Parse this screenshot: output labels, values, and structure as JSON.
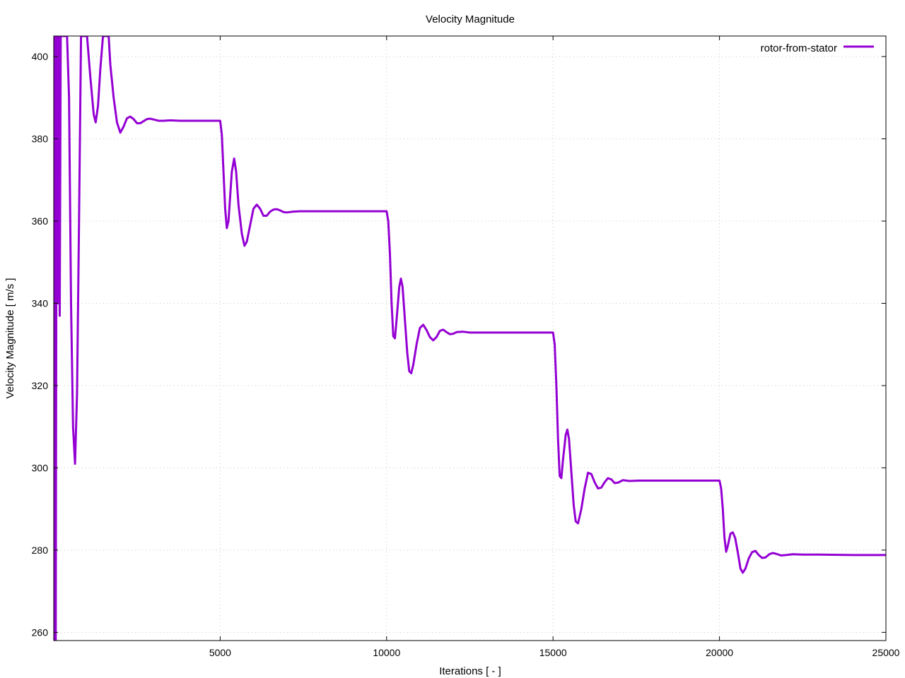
{
  "chart_data": {
    "type": "line",
    "title": "Velocity Magnitude",
    "xlabel": "Iterations [ - ]",
    "ylabel": "Velocity Magnitude [ m/s ]",
    "xlim": [
      0,
      25000
    ],
    "ylim": [
      258,
      405
    ],
    "x_ticks": [
      5000,
      10000,
      15000,
      20000,
      25000
    ],
    "y_ticks": [
      260,
      280,
      300,
      320,
      340,
      360,
      380,
      400
    ],
    "grid": true,
    "legend_position": "top-right",
    "series": [
      {
        "name": "rotor-from-stator",
        "color": "#9400d3",
        "points": [
          [
            0,
            258
          ],
          [
            30,
            405
          ],
          [
            60,
            258
          ],
          [
            90,
            405
          ],
          [
            120,
            340
          ],
          [
            150,
            405
          ],
          [
            180,
            337
          ],
          [
            210,
            405
          ],
          [
            400,
            405
          ],
          [
            460,
            390
          ],
          [
            520,
            340
          ],
          [
            580,
            310
          ],
          [
            640,
            301
          ],
          [
            700,
            318
          ],
          [
            760,
            360
          ],
          [
            820,
            405
          ],
          [
            900,
            405
          ],
          [
            1000,
            405
          ],
          [
            1100,
            395
          ],
          [
            1200,
            386
          ],
          [
            1260,
            384
          ],
          [
            1330,
            388
          ],
          [
            1400,
            397
          ],
          [
            1480,
            405
          ],
          [
            1650,
            405
          ],
          [
            1700,
            398
          ],
          [
            1800,
            390
          ],
          [
            1900,
            384
          ],
          [
            2000,
            381.5
          ],
          [
            2100,
            383
          ],
          [
            2200,
            385
          ],
          [
            2300,
            385.4
          ],
          [
            2400,
            384.8
          ],
          [
            2500,
            383.8
          ],
          [
            2600,
            383.8
          ],
          [
            2700,
            384.3
          ],
          [
            2800,
            384.8
          ],
          [
            2900,
            384.9
          ],
          [
            3000,
            384.7
          ],
          [
            3150,
            384.4
          ],
          [
            3300,
            384.4
          ],
          [
            3500,
            384.5
          ],
          [
            3800,
            384.4
          ],
          [
            4200,
            384.4
          ],
          [
            4600,
            384.4
          ],
          [
            5000,
            384.4
          ],
          [
            5050,
            381
          ],
          [
            5100,
            372
          ],
          [
            5150,
            363
          ],
          [
            5200,
            358.3
          ],
          [
            5250,
            360
          ],
          [
            5300,
            366
          ],
          [
            5350,
            372
          ],
          [
            5420,
            375.2
          ],
          [
            5480,
            372
          ],
          [
            5550,
            364
          ],
          [
            5650,
            357
          ],
          [
            5730,
            354
          ],
          [
            5800,
            355
          ],
          [
            5900,
            359
          ],
          [
            6000,
            363
          ],
          [
            6100,
            364
          ],
          [
            6200,
            363
          ],
          [
            6300,
            361.3
          ],
          [
            6400,
            361.3
          ],
          [
            6500,
            362.3
          ],
          [
            6600,
            362.8
          ],
          [
            6700,
            362.9
          ],
          [
            6800,
            362.6
          ],
          [
            6900,
            362.2
          ],
          [
            7000,
            362.1
          ],
          [
            7200,
            362.3
          ],
          [
            7400,
            362.4
          ],
          [
            7800,
            362.4
          ],
          [
            8500,
            362.4
          ],
          [
            9500,
            362.4
          ],
          [
            10000,
            362.4
          ],
          [
            10050,
            360
          ],
          [
            10100,
            352
          ],
          [
            10150,
            340
          ],
          [
            10200,
            332
          ],
          [
            10250,
            331.5
          ],
          [
            10300,
            336
          ],
          [
            10380,
            344
          ],
          [
            10430,
            346
          ],
          [
            10480,
            344
          ],
          [
            10550,
            336
          ],
          [
            10620,
            328
          ],
          [
            10680,
            323.5
          ],
          [
            10740,
            323
          ],
          [
            10800,
            325
          ],
          [
            10900,
            330
          ],
          [
            11000,
            334
          ],
          [
            11100,
            334.8
          ],
          [
            11200,
            333.5
          ],
          [
            11300,
            331.8
          ],
          [
            11400,
            331
          ],
          [
            11500,
            331.8
          ],
          [
            11600,
            333.3
          ],
          [
            11700,
            333.6
          ],
          [
            11800,
            333
          ],
          [
            11900,
            332.5
          ],
          [
            12000,
            332.6
          ],
          [
            12100,
            333
          ],
          [
            12300,
            333.1
          ],
          [
            12500,
            332.9
          ],
          [
            12800,
            332.9
          ],
          [
            13500,
            332.9
          ],
          [
            14500,
            332.9
          ],
          [
            15000,
            332.9
          ],
          [
            15050,
            330
          ],
          [
            15100,
            320
          ],
          [
            15150,
            307
          ],
          [
            15200,
            298
          ],
          [
            15250,
            297.5
          ],
          [
            15300,
            302
          ],
          [
            15380,
            308
          ],
          [
            15430,
            309.3
          ],
          [
            15480,
            307
          ],
          [
            15550,
            299
          ],
          [
            15620,
            291
          ],
          [
            15680,
            287
          ],
          [
            15750,
            286.5
          ],
          [
            15850,
            290
          ],
          [
            15950,
            295
          ],
          [
            16050,
            298.8
          ],
          [
            16150,
            298.5
          ],
          [
            16250,
            296.5
          ],
          [
            16350,
            295
          ],
          [
            16450,
            295.2
          ],
          [
            16550,
            296.5
          ],
          [
            16650,
            297.5
          ],
          [
            16750,
            297.2
          ],
          [
            16850,
            296.3
          ],
          [
            16950,
            296.4
          ],
          [
            17100,
            297
          ],
          [
            17300,
            296.8
          ],
          [
            17600,
            296.9
          ],
          [
            18200,
            296.9
          ],
          [
            19200,
            296.9
          ],
          [
            20000,
            296.9
          ],
          [
            20050,
            295
          ],
          [
            20100,
            290
          ],
          [
            20150,
            283
          ],
          [
            20200,
            279.6
          ],
          [
            20250,
            281
          ],
          [
            20330,
            284
          ],
          [
            20400,
            284.3
          ],
          [
            20470,
            283
          ],
          [
            20550,
            279.5
          ],
          [
            20630,
            275.5
          ],
          [
            20700,
            274.5
          ],
          [
            20780,
            275.5
          ],
          [
            20880,
            278
          ],
          [
            20980,
            279.5
          ],
          [
            21080,
            279.8
          ],
          [
            21180,
            278.8
          ],
          [
            21280,
            278.1
          ],
          [
            21380,
            278.2
          ],
          [
            21500,
            279
          ],
          [
            21600,
            279.3
          ],
          [
            21700,
            279.1
          ],
          [
            21850,
            278.7
          ],
          [
            22000,
            278.8
          ],
          [
            22200,
            279
          ],
          [
            22500,
            278.9
          ],
          [
            23000,
            278.9
          ],
          [
            24000,
            278.8
          ],
          [
            25000,
            278.8
          ]
        ]
      }
    ]
  }
}
